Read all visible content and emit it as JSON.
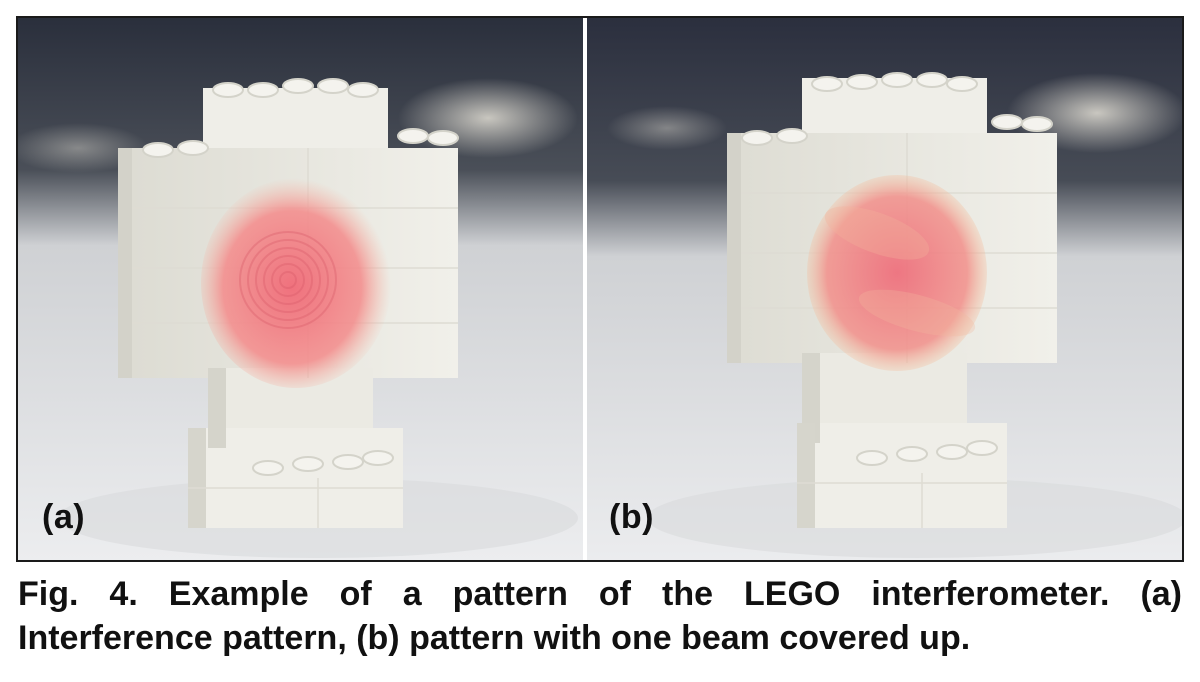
{
  "figure": {
    "panels": [
      {
        "label": "(a)",
        "pattern": "interference-rings"
      },
      {
        "label": "(b)",
        "pattern": "single-beam-spot"
      }
    ],
    "caption": {
      "line1": "Fig. 4. Example of a pattern of the LEGO interferometer. (a)",
      "line2": "Interference pattern, (b) pattern with one beam covered up."
    },
    "colors": {
      "laser_spot": "#f07a7e",
      "brick": "#ecebe4",
      "background_blur": "#2c3240",
      "table": "#e9eaec"
    }
  }
}
